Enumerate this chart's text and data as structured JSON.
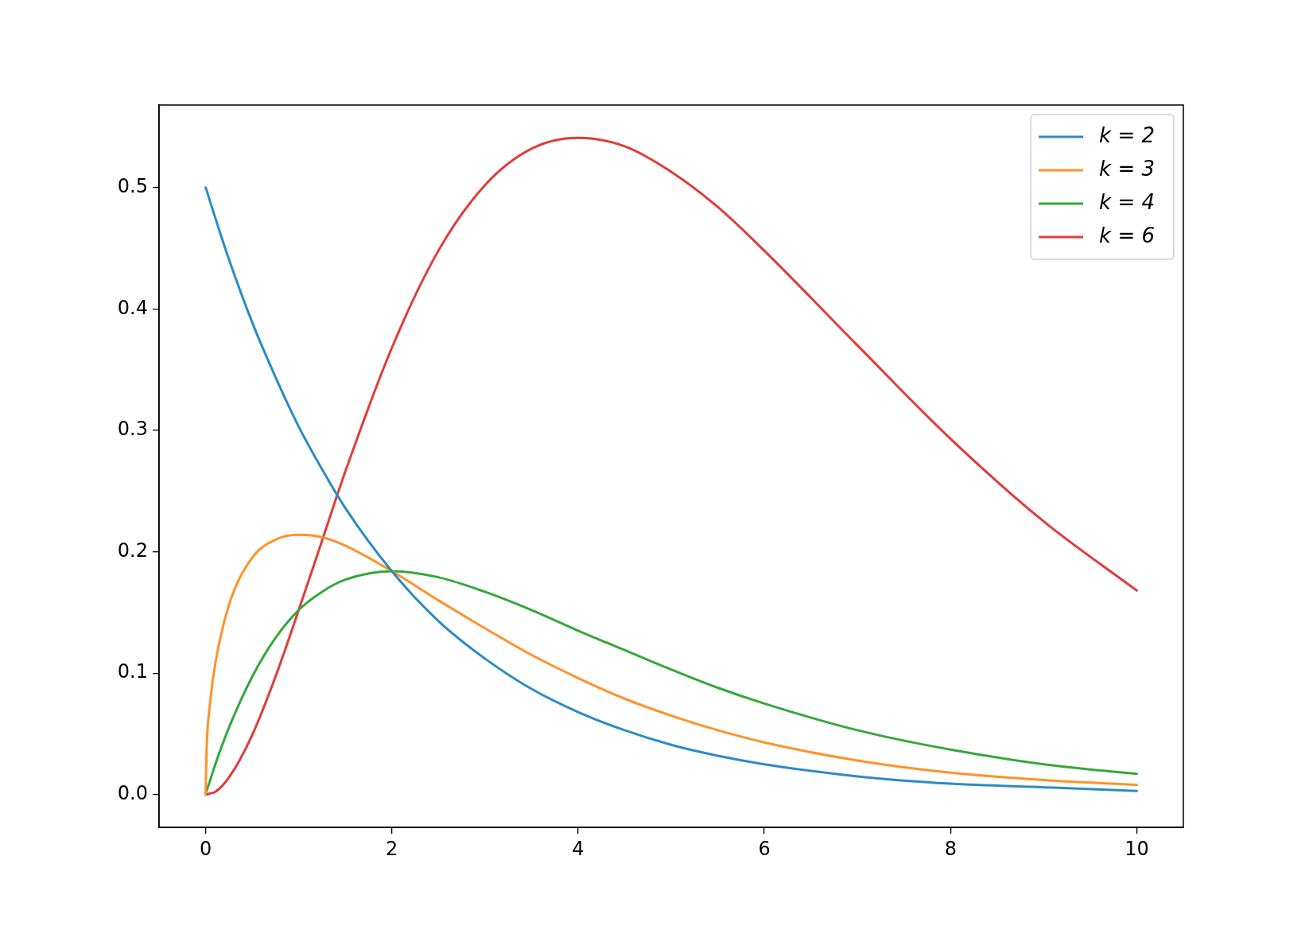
{
  "chart_data": {
    "type": "line",
    "x": [
      0,
      0.01,
      0.05,
      0.1,
      0.25,
      0.5,
      0.75,
      1,
      1.25,
      1.5,
      2,
      2.5,
      3,
      3.5,
      4,
      4.5,
      5,
      5.5,
      6,
      7,
      8,
      9,
      10
    ],
    "series": [
      {
        "name": "k = 2",
        "color": "#2b8cc4",
        "values": [
          0.5,
          0.498,
          0.488,
          0.476,
          0.441,
          0.389,
          0.344,
          0.303,
          0.268,
          0.236,
          0.184,
          0.143,
          0.112,
          0.087,
          0.068,
          0.053,
          0.041,
          0.032,
          0.025,
          0.015,
          0.009,
          0.006,
          0.003
        ]
      },
      {
        "name": "k = 3",
        "color": "#ff9229",
        "values": [
          0,
          0.035,
          0.077,
          0.106,
          0.156,
          0.195,
          0.21,
          0.214,
          0.212,
          0.205,
          0.184,
          0.16,
          0.137,
          0.115,
          0.096,
          0.079,
          0.065,
          0.053,
          0.043,
          0.028,
          0.018,
          0.012,
          0.008
        ]
      },
      {
        "name": "k = 4",
        "color": "#35a83a",
        "values": [
          0,
          0.003,
          0.012,
          0.024,
          0.055,
          0.097,
          0.129,
          0.152,
          0.167,
          0.177,
          0.184,
          0.179,
          0.167,
          0.152,
          0.135,
          0.119,
          0.103,
          0.088,
          0.075,
          0.053,
          0.037,
          0.025,
          0.017
        ]
      },
      {
        "name": "k = 6",
        "color": "#e03c3a",
        "values": [
          0,
          0,
          0.001,
          0.002,
          0.014,
          0.049,
          0.097,
          0.152,
          0.209,
          0.266,
          0.368,
          0.448,
          0.502,
          0.532,
          0.541,
          0.534,
          0.513,
          0.484,
          0.448,
          0.37,
          0.293,
          0.225,
          0.168
        ]
      }
    ],
    "xlim": [
      -0.5,
      10.5
    ],
    "xticks": [
      0,
      2,
      4,
      6,
      8,
      10
    ],
    "ylim": [
      -0.027,
      0.568
    ],
    "yticks": [
      {
        "value": 0,
        "label": "0.0"
      },
      0.1,
      0.2,
      0.3,
      0.4,
      0.5
    ],
    "grid": false,
    "legend": "top right",
    "marker": "none",
    "line_style": "solid"
  }
}
